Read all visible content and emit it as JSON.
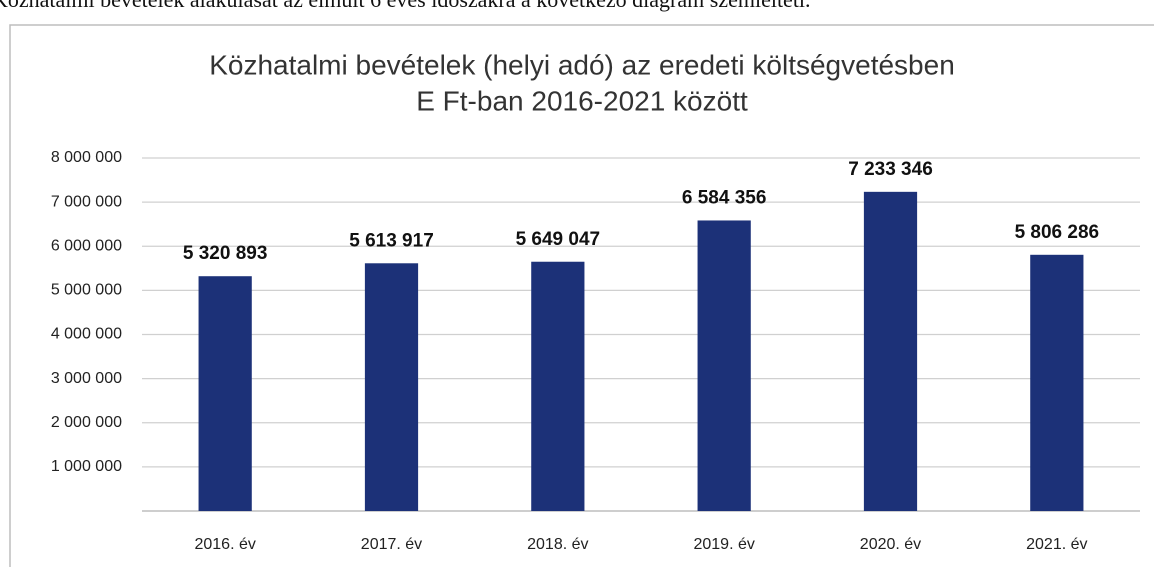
{
  "caption": "Közhatalmi bevételek alakulását az elmúlt 6 éves időszakra a következő diagram szemlélteti.",
  "chart_data": {
    "type": "bar",
    "title": [
      "Közhatalmi bevételek (helyi adó) az eredeti költségvetésben",
      "E Ft-ban 2016-2021 között"
    ],
    "categories": [
      "2016. év",
      "2017. év",
      "2018. év",
      "2019. év",
      "2020. év",
      "2021. év"
    ],
    "values": [
      5320893,
      5613917,
      5649047,
      6584356,
      7233346,
      5806286
    ],
    "value_labels": [
      "5 320 893",
      "5 613 917",
      "5 649 047",
      "6 584 356",
      "7 233 346",
      "5 806 286"
    ],
    "color": "#1c3178",
    "ylim": [
      0,
      8000000
    ],
    "yticks": [
      {
        "value": 1000000,
        "label": "1 000 000"
      },
      {
        "value": 2000000,
        "label": "2 000 000"
      },
      {
        "value": 3000000,
        "label": "3 000 000"
      },
      {
        "value": 4000000,
        "label": "4 000 000"
      },
      {
        "value": 5000000,
        "label": "5 000 000"
      },
      {
        "value": 6000000,
        "label": "6 000 000"
      },
      {
        "value": 7000000,
        "label": "7 000 000"
      },
      {
        "value": 8000000,
        "label": "8 000 000"
      }
    ],
    "grid": true
  }
}
